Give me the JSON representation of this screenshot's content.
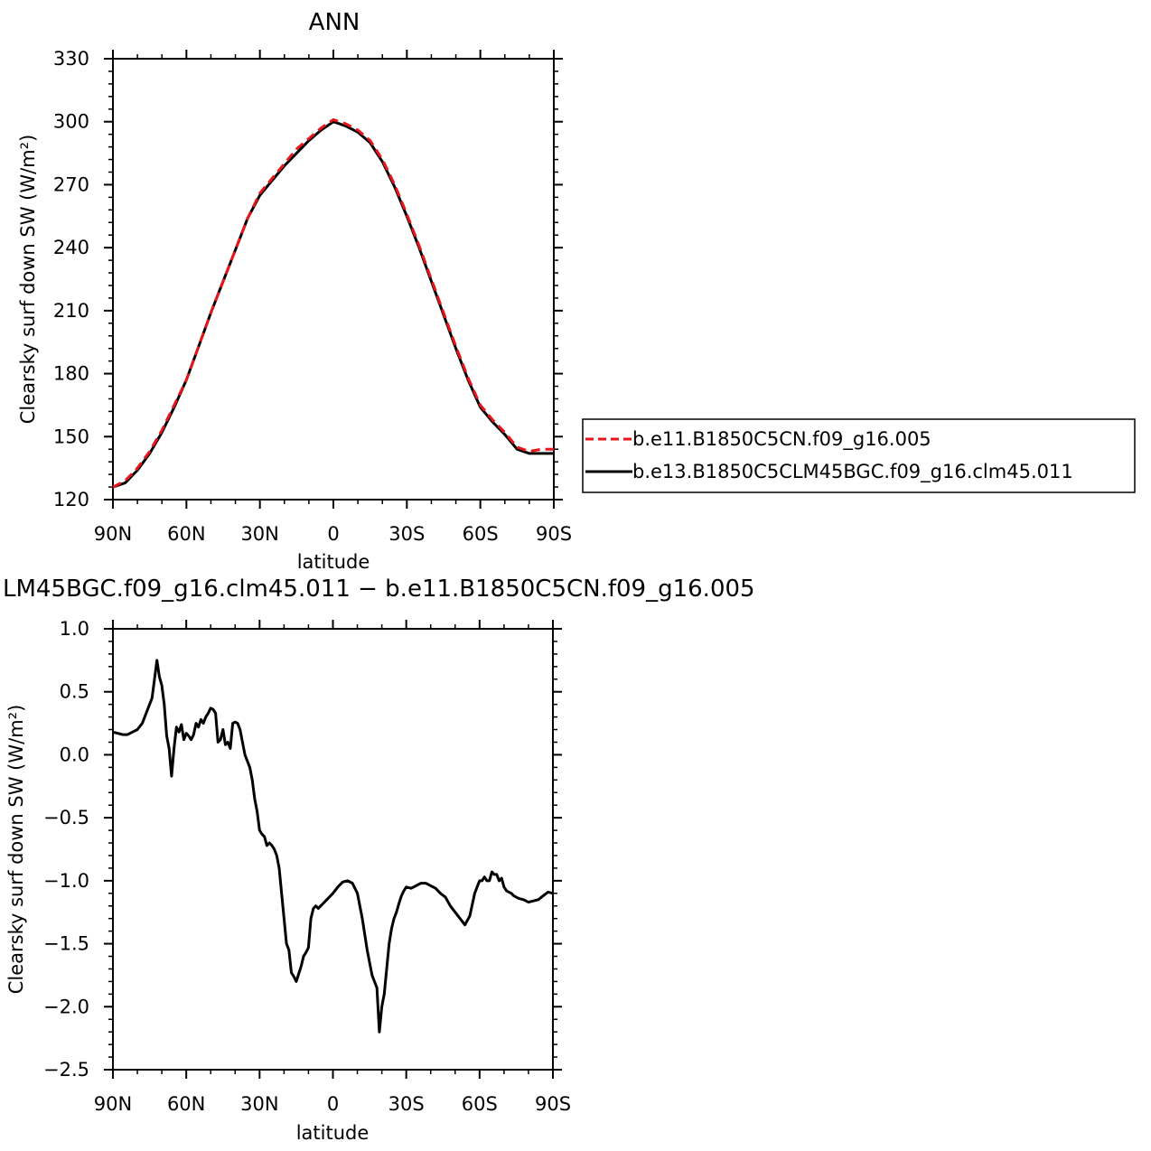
{
  "chart_data": [
    {
      "type": "line",
      "title": "ANN",
      "xlabel": "latitude",
      "ylabel": "Clearsky surf down SW (W/m²)",
      "x_ticks": [
        "90N",
        "60N",
        "30N",
        "0",
        "30S",
        "60S",
        "90S"
      ],
      "y_ticks": [
        "120",
        "150",
        "180",
        "210",
        "240",
        "270",
        "300",
        "330"
      ],
      "xlim": [
        90,
        -90
      ],
      "ylim": [
        120,
        330
      ],
      "x_units": "degrees latitude (positive = N)",
      "series": [
        {
          "name": "b.e11.B1850C5CN.f09_g16.005",
          "color": "#e8161b",
          "style": "dashed",
          "x": [
            90,
            85,
            80,
            75,
            70,
            65,
            60,
            55,
            50,
            45,
            40,
            35,
            30,
            25,
            20,
            15,
            10,
            5,
            0,
            -5,
            -10,
            -15,
            -20,
            -25,
            -30,
            -35,
            -40,
            -45,
            -50,
            -55,
            -60,
            -65,
            -70,
            -75,
            -80,
            -85,
            -90
          ],
          "y": [
            126,
            129,
            135,
            143,
            153,
            165,
            177,
            193,
            209,
            224,
            239,
            254,
            266,
            273,
            280,
            287,
            292,
            297,
            301,
            299,
            296,
            291,
            282,
            270,
            256,
            241,
            225,
            209,
            193,
            178,
            165,
            158,
            152,
            145,
            143,
            144,
            144
          ]
        },
        {
          "name": "b.e13.B1850C5CLM45BGC.f09_g16.clm45.011",
          "color": "#000000",
          "style": "solid",
          "x": [
            90,
            85,
            80,
            75,
            70,
            65,
            60,
            55,
            50,
            45,
            40,
            35,
            30,
            25,
            20,
            15,
            10,
            5,
            0,
            -5,
            -10,
            -15,
            -20,
            -25,
            -30,
            -35,
            -40,
            -45,
            -50,
            -55,
            -60,
            -65,
            -70,
            -75,
            -80,
            -85,
            -90
          ],
          "y": [
            126,
            128,
            134,
            142,
            152,
            164,
            177,
            193,
            209,
            224,
            239,
            254,
            265,
            272,
            279,
            285,
            291,
            296,
            300,
            298,
            295,
            290,
            281,
            269,
            255,
            240,
            224,
            208,
            192,
            177,
            164,
            157,
            151,
            144,
            142,
            142,
            142
          ]
        }
      ]
    },
    {
      "type": "line",
      "title": "LM45BGC.f09_g16.clm45.011 − b.e11.B1850C5CN.f09_g16.005",
      "xlabel": "latitude",
      "ylabel": "Clearsky surf down SW (W/m²)",
      "x_ticks": [
        "90N",
        "60N",
        "30N",
        "0",
        "30S",
        "60S",
        "90S"
      ],
      "y_ticks": [
        "1.0",
        "0.5",
        "0.0",
        "−0.5",
        "−1.0",
        "−1.5",
        "−2.0",
        "−2.5"
      ],
      "xlim": [
        90,
        -90
      ],
      "ylim": [
        -2.5,
        1.0
      ],
      "x_units": "degrees latitude (positive = N)",
      "series": [
        {
          "color": "#000000",
          "style": "solid",
          "x": [
            90,
            86,
            84,
            82,
            80,
            78,
            76,
            74,
            72,
            71,
            70,
            69,
            68,
            67,
            66,
            65,
            64,
            63,
            62,
            61,
            60,
            59,
            58,
            57,
            56,
            55,
            54,
            53,
            52,
            51,
            50,
            49,
            48,
            47,
            46,
            45,
            44,
            43,
            42,
            41,
            40,
            39,
            38,
            37,
            36,
            35,
            34,
            33,
            32,
            31,
            30,
            29,
            28,
            27,
            26,
            25,
            24,
            23,
            22,
            21,
            20,
            19,
            18,
            17,
            16,
            15,
            14,
            13,
            12,
            11,
            10,
            9,
            8,
            7,
            6,
            5,
            4,
            3,
            2,
            1,
            0,
            -2,
            -4,
            -6,
            -8,
            -10,
            -12,
            -14,
            -16,
            -18,
            -19,
            -20,
            -21,
            -22,
            -23,
            -24,
            -25,
            -26,
            -27,
            -28,
            -29,
            -30,
            -32,
            -34,
            -36,
            -38,
            -40,
            -42,
            -44,
            -46,
            -48,
            -50,
            -52,
            -54,
            -56,
            -58,
            -59,
            -60,
            -61,
            -62,
            -63,
            -64,
            -65,
            -66,
            -67,
            -68,
            -69,
            -70,
            -71,
            -72,
            -73,
            -74,
            -76,
            -78,
            -80,
            -82,
            -84,
            -86,
            -88,
            -90
          ],
          "y": [
            0.18,
            0.16,
            0.16,
            0.18,
            0.2,
            0.25,
            0.35,
            0.45,
            0.75,
            0.62,
            0.55,
            0.4,
            0.15,
            0.05,
            -0.17,
            0.05,
            0.22,
            0.18,
            0.24,
            0.12,
            0.17,
            0.15,
            0.12,
            0.16,
            0.25,
            0.22,
            0.28,
            0.25,
            0.3,
            0.33,
            0.37,
            0.36,
            0.33,
            0.1,
            0.12,
            0.2,
            0.08,
            0.1,
            0.05,
            0.25,
            0.26,
            0.25,
            0.2,
            0.1,
            0.0,
            -0.05,
            -0.1,
            -0.2,
            -0.35,
            -0.45,
            -0.6,
            -0.63,
            -0.65,
            -0.72,
            -0.7,
            -0.72,
            -0.75,
            -0.8,
            -0.9,
            -1.1,
            -1.3,
            -1.5,
            -1.55,
            -1.73,
            -1.76,
            -1.8,
            -1.74,
            -1.68,
            -1.6,
            -1.57,
            -1.53,
            -1.3,
            -1.22,
            -1.2,
            -1.22,
            -1.2,
            -1.18,
            -1.16,
            -1.14,
            -1.12,
            -1.1,
            -1.05,
            -1.01,
            -1.0,
            -1.02,
            -1.1,
            -1.3,
            -1.55,
            -1.75,
            -1.85,
            -2.2,
            -2.0,
            -1.9,
            -1.7,
            -1.5,
            -1.38,
            -1.3,
            -1.25,
            -1.18,
            -1.12,
            -1.08,
            -1.05,
            -1.06,
            -1.04,
            -1.02,
            -1.02,
            -1.04,
            -1.06,
            -1.1,
            -1.13,
            -1.2,
            -1.25,
            -1.3,
            -1.35,
            -1.28,
            -1.1,
            -1.05,
            -1.0,
            -1.0,
            -0.97,
            -1.0,
            -1.0,
            -0.93,
            -0.95,
            -0.95,
            -1.0,
            -0.98,
            -1.05,
            -1.08,
            -1.09,
            -1.1,
            -1.12,
            -1.14,
            -1.15,
            -1.17,
            -1.16,
            -1.15,
            -1.12,
            -1.09,
            -1.1
          ]
        }
      ]
    }
  ]
}
